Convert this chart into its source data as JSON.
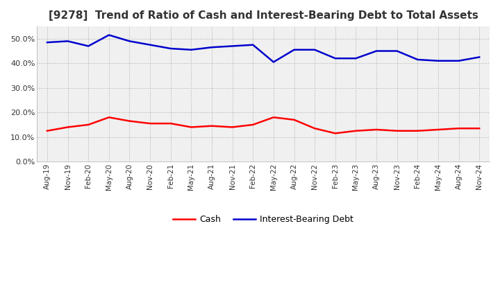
{
  "title": "[9278]  Trend of Ratio of Cash and Interest-Bearing Debt to Total Assets",
  "x_labels": [
    "Aug-19",
    "Nov-19",
    "Feb-20",
    "May-20",
    "Aug-20",
    "Nov-20",
    "Feb-21",
    "May-21",
    "Aug-21",
    "Nov-21",
    "Feb-22",
    "May-22",
    "Aug-22",
    "Nov-22",
    "Feb-23",
    "May-23",
    "Aug-23",
    "Nov-23",
    "Feb-24",
    "May-24",
    "Aug-24",
    "Nov-24"
  ],
  "cash": [
    12.5,
    14.0,
    15.0,
    18.0,
    16.5,
    15.5,
    15.5,
    14.0,
    14.5,
    14.0,
    15.0,
    18.0,
    17.0,
    13.5,
    11.5,
    12.5,
    13.0,
    12.5,
    12.5,
    13.0,
    13.5,
    13.5
  ],
  "debt": [
    48.5,
    49.0,
    47.0,
    51.5,
    49.0,
    47.5,
    46.0,
    45.5,
    46.5,
    47.0,
    47.5,
    40.5,
    45.5,
    45.5,
    42.0,
    42.0,
    45.0,
    45.0,
    41.5,
    41.0,
    41.0,
    42.5
  ],
  "cash_color": "#ff0000",
  "debt_color": "#0000cd",
  "ylim": [
    0,
    55
  ],
  "yticks": [
    0,
    10,
    20,
    30,
    40,
    50
  ],
  "background_color": "#ffffff",
  "plot_bg_color": "#f0f0f0",
  "grid_color": "#aaaaaa",
  "title_fontsize": 11,
  "legend_labels": [
    "Cash",
    "Interest-Bearing Debt"
  ]
}
